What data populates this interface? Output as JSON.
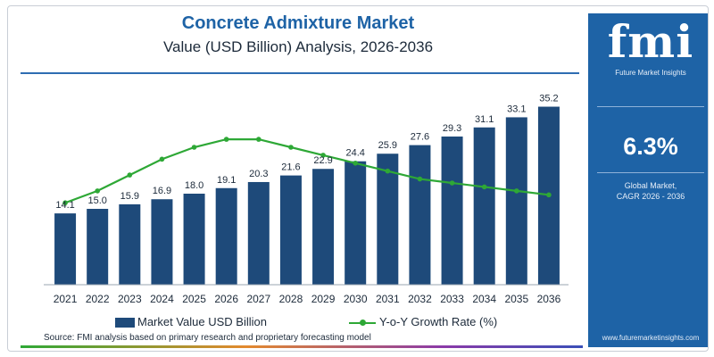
{
  "header": {
    "title": "Concrete Admixture Market",
    "subtitle": "Value (USD Billion) Analysis, 2026-2036"
  },
  "legend": {
    "bar_label": "Market Value USD Billion",
    "line_label": "Y-o-Y Growth Rate (%)"
  },
  "source": "Source: FMI analysis based on primary research and proprietary forecasting model",
  "side_panel": {
    "logo": "fmi",
    "tagline": "Future Market Insights",
    "cagr_value": "6.3%",
    "cagr_label_line1": "Global Market,",
    "cagr_label_line2": "CAGR 2026 - 2036",
    "url": "www.futuremarketinsights.com"
  },
  "colors": {
    "bar": "#1e4a7a",
    "line": "#2ea836",
    "accent": "#1e63a6"
  },
  "chart_data": {
    "type": "bar",
    "categories": [
      "2021",
      "2022",
      "2023",
      "2024",
      "2025",
      "2026",
      "2027",
      "2028",
      "2029",
      "2030",
      "2031",
      "2032",
      "2033",
      "2034",
      "2035",
      "2036"
    ],
    "series": [
      {
        "name": "Market Value USD Billion",
        "type": "bar",
        "values": [
          14.1,
          15.0,
          15.9,
          16.9,
          18.0,
          19.1,
          20.3,
          21.6,
          22.9,
          24.4,
          25.9,
          27.6,
          29.3,
          31.1,
          33.1,
          35.2
        ],
        "labels": [
          "14.1",
          "15.0",
          "15.9",
          "16.9",
          "18.0",
          "19.1",
          "20.3",
          "21.6",
          "22.9",
          "24.4",
          "25.9",
          "27.6",
          "29.3",
          "31.1",
          "33.1",
          "35.2"
        ]
      },
      {
        "name": "Y-o-Y Growth Rate (%)",
        "type": "line",
        "values": [
          5.2,
          5.5,
          5.9,
          6.3,
          6.6,
          6.8,
          6.8,
          6.6,
          6.4,
          6.2,
          6.0,
          5.8,
          5.7,
          5.6,
          5.5,
          5.4
        ]
      }
    ],
    "ylim": [
      0,
      36
    ],
    "line_ylim": [
      3,
      7.5
    ],
    "grid": false,
    "legend_position": "bottom"
  }
}
